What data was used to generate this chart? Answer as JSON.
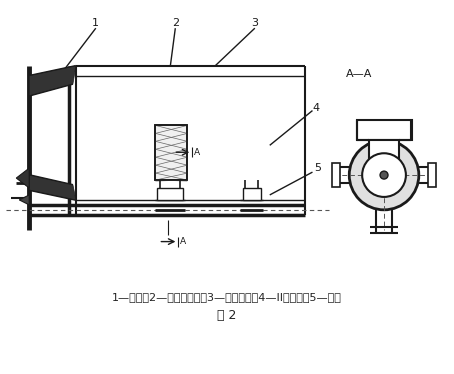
{
  "fig_width": 4.54,
  "fig_height": 3.74,
  "dpi": 100,
  "bg_color": "#ffffff",
  "line_color": "#1a1a1a",
  "caption_line1": "1—侧板；2—橡胶条筛面；3—筛面托架；4—II型辞栓；5—横梁",
  "caption_line2": "图 2",
  "label1": "1",
  "label2": "2",
  "label3": "3",
  "label4": "4",
  "label5": "5",
  "labelAA": "A—A"
}
